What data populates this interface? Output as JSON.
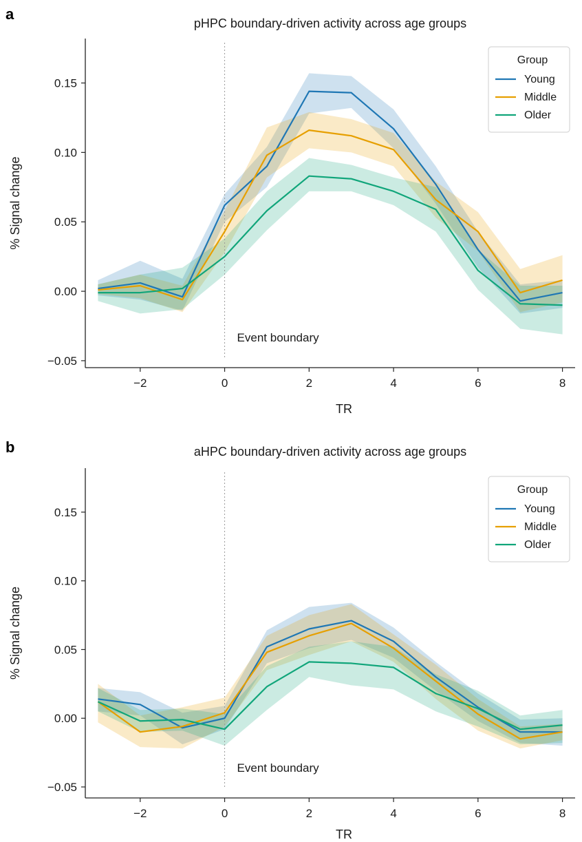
{
  "chart_data": [
    {
      "type": "line",
      "panel_letter": "a",
      "title": "pHPC boundary-driven activity across age groups",
      "xlabel": "TR",
      "ylabel": "% Signal change",
      "xlim": [
        -3.3,
        8.3
      ],
      "ylim": [
        -0.055,
        0.182
      ],
      "xticks": [
        -2,
        0,
        2,
        4,
        6,
        8
      ],
      "xtick_labels": [
        "−2",
        "0",
        "2",
        "4",
        "6",
        "8"
      ],
      "yticks": [
        -0.05,
        0.0,
        0.05,
        0.1,
        0.15
      ],
      "ytick_labels": [
        "−0.05",
        "0.00",
        "0.05",
        "0.10",
        "0.15"
      ],
      "legend_title": "Group",
      "legend_position": "top-right",
      "annotation": "Event boundary",
      "annotation_x": 0,
      "x": [
        -3,
        -2,
        -1,
        0,
        1,
        2,
        3,
        4,
        5,
        6,
        7,
        8
      ],
      "series": [
        {
          "name": "Young",
          "color": "#1f77b4",
          "values": [
            0.002,
            0.006,
            -0.004,
            0.062,
            0.09,
            0.144,
            0.143,
            0.117,
            0.077,
            0.03,
            -0.007,
            -0.001
          ],
          "lower": [
            -0.003,
            -0.006,
            -0.014,
            0.05,
            0.075,
            0.128,
            0.132,
            0.103,
            0.063,
            0.017,
            -0.016,
            -0.012
          ],
          "upper": [
            0.008,
            0.022,
            0.009,
            0.07,
            0.104,
            0.157,
            0.155,
            0.131,
            0.09,
            0.043,
            0.005,
            0.008
          ]
        },
        {
          "name": "Middle",
          "color": "#e69f00",
          "values": [
            0.001,
            0.004,
            -0.006,
            0.043,
            0.098,
            0.116,
            0.112,
            0.102,
            0.066,
            0.043,
            -0.001,
            0.008
          ],
          "lower": [
            -0.002,
            -0.005,
            -0.015,
            0.028,
            0.082,
            0.103,
            0.1,
            0.09,
            0.053,
            0.029,
            -0.015,
            -0.008
          ],
          "upper": [
            0.005,
            0.012,
            0.004,
            0.058,
            0.118,
            0.129,
            0.124,
            0.114,
            0.079,
            0.057,
            0.016,
            0.026
          ]
        },
        {
          "name": "Older",
          "color": "#10a57a",
          "values": [
            -0.001,
            -0.001,
            0.002,
            0.025,
            0.058,
            0.083,
            0.081,
            0.072,
            0.059,
            0.015,
            -0.009,
            -0.01
          ],
          "lower": [
            -0.007,
            -0.016,
            -0.013,
            0.012,
            0.044,
            0.072,
            0.072,
            0.062,
            0.043,
            0.001,
            -0.027,
            -0.031
          ],
          "upper": [
            0.005,
            0.012,
            0.017,
            0.038,
            0.072,
            0.096,
            0.091,
            0.082,
            0.075,
            0.03,
            0.004,
            0.004
          ]
        }
      ]
    },
    {
      "type": "line",
      "panel_letter": "b",
      "title": "aHPC boundary-driven activity across age groups",
      "xlabel": "TR",
      "ylabel": "% Signal change",
      "xlim": [
        -3.3,
        8.3
      ],
      "ylim": [
        -0.058,
        0.182
      ],
      "xticks": [
        -2,
        0,
        2,
        4,
        6,
        8
      ],
      "xtick_labels": [
        "−2",
        "0",
        "2",
        "4",
        "6",
        "8"
      ],
      "yticks": [
        -0.05,
        0.0,
        0.05,
        0.1,
        0.15
      ],
      "ytick_labels": [
        "−0.05",
        "0.00",
        "0.05",
        "0.10",
        "0.15"
      ],
      "legend_title": "Group",
      "legend_position": "top-right",
      "annotation": "Event boundary",
      "annotation_x": 0,
      "x": [
        -3,
        -2,
        -1,
        0,
        1,
        2,
        3,
        4,
        5,
        6,
        7,
        8
      ],
      "series": [
        {
          "name": "Young",
          "color": "#1f77b4",
          "values": [
            0.014,
            0.01,
            -0.007,
            0.0,
            0.052,
            0.065,
            0.071,
            0.056,
            0.03,
            0.008,
            -0.01,
            -0.01
          ],
          "lower": [
            0.005,
            0.002,
            -0.019,
            -0.008,
            0.04,
            0.051,
            0.057,
            0.044,
            0.02,
            -0.002,
            -0.018,
            -0.02
          ],
          "upper": [
            0.022,
            0.019,
            0.004,
            0.009,
            0.064,
            0.081,
            0.084,
            0.066,
            0.041,
            0.018,
            -0.001,
            0.0
          ]
        },
        {
          "name": "Middle",
          "color": "#e69f00",
          "values": [
            0.012,
            -0.01,
            -0.006,
            0.004,
            0.048,
            0.06,
            0.069,
            0.051,
            0.027,
            0.003,
            -0.015,
            -0.01
          ],
          "lower": [
            -0.003,
            -0.021,
            -0.022,
            -0.006,
            0.035,
            0.046,
            0.056,
            0.041,
            0.014,
            -0.009,
            -0.022,
            -0.016
          ],
          "upper": [
            0.025,
            0.002,
            0.008,
            0.015,
            0.06,
            0.075,
            0.083,
            0.061,
            0.039,
            0.014,
            -0.006,
            -0.004
          ]
        },
        {
          "name": "Older",
          "color": "#10a57a",
          "values": [
            0.012,
            -0.002,
            -0.001,
            -0.008,
            0.023,
            0.041,
            0.04,
            0.037,
            0.018,
            0.007,
            -0.008,
            -0.005
          ],
          "lower": [
            0.005,
            -0.01,
            -0.009,
            -0.02,
            0.006,
            0.03,
            0.024,
            0.021,
            0.005,
            -0.006,
            -0.019,
            -0.018
          ],
          "upper": [
            0.022,
            0.006,
            0.007,
            0.003,
            0.038,
            0.052,
            0.056,
            0.052,
            0.032,
            0.02,
            0.002,
            0.006
          ]
        }
      ]
    }
  ]
}
